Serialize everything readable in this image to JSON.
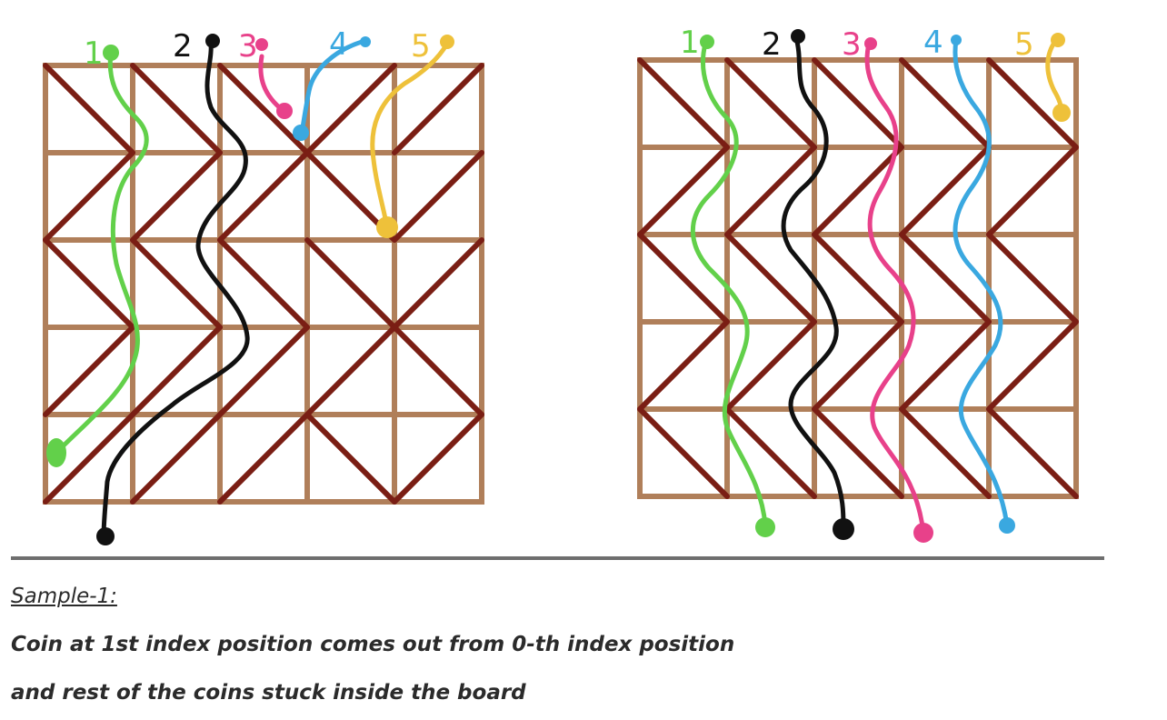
{
  "boards": [
    {
      "name": "left",
      "coin_labels": [
        "1",
        "2",
        "3",
        "4",
        "5"
      ]
    },
    {
      "name": "right",
      "coin_labels": [
        "1",
        "2",
        "3",
        "4",
        "5"
      ]
    }
  ],
  "coin_colors": [
    "#62d04a",
    "#111111",
    "#e8418a",
    "#3aa8e0",
    "#eec13a"
  ],
  "frame_color": "#b07f5a",
  "diagonal_color": "#7a1e14",
  "caption": {
    "heading": "Sample-1:",
    "line_1": "Coin at 1st index position comes out from 0-th index position",
    "line_2": "and rest of the coins stuck inside the board"
  }
}
